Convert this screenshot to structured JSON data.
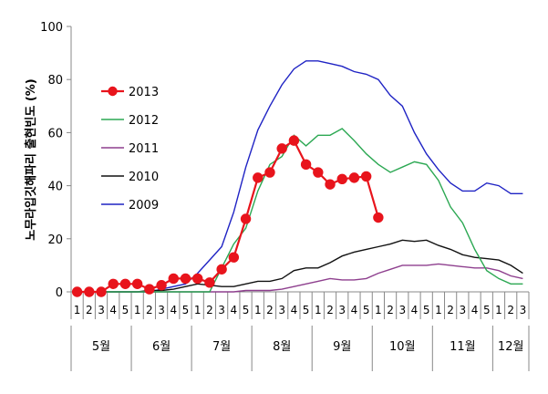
{
  "chart_data": {
    "type": "line",
    "ylabel": "노무라입깃해파리 출현빈도 (%)",
    "ylim": [
      0,
      100
    ],
    "yticks": [
      0,
      20,
      40,
      60,
      80,
      100
    ],
    "grid": false,
    "legend_position": "left-inside",
    "months": [
      {
        "label": "5월",
        "weeks": [
          "1",
          "2",
          "3",
          "4",
          "5"
        ]
      },
      {
        "label": "6월",
        "weeks": [
          "1",
          "2",
          "3",
          "4",
          "5"
        ]
      },
      {
        "label": "7월",
        "weeks": [
          "1",
          "2",
          "3",
          "4",
          "5"
        ]
      },
      {
        "label": "8월",
        "weeks": [
          "1",
          "2",
          "3",
          "4",
          "5"
        ]
      },
      {
        "label": "9월",
        "weeks": [
          "1",
          "2",
          "3",
          "4",
          "5"
        ]
      },
      {
        "label": "10월",
        "weeks": [
          "1",
          "2",
          "3",
          "4",
          "5"
        ]
      },
      {
        "label": "11월",
        "weeks": [
          "1",
          "2",
          "3",
          "4",
          "5"
        ]
      },
      {
        "label": "12월",
        "weeks": [
          "1",
          "2",
          "3"
        ]
      }
    ],
    "series": [
      {
        "name": "2013",
        "color": "#e8141c",
        "marker": "circle",
        "values": [
          0,
          0,
          0,
          3,
          3,
          3,
          1,
          2.5,
          5,
          5,
          5,
          3.5,
          8.5,
          13,
          27.5,
          43,
          45,
          54,
          57,
          48,
          45,
          40.5,
          42.5,
          43,
          43.5,
          28
        ]
      },
      {
        "name": "2012",
        "color": "#2ca853",
        "values": [
          0,
          0,
          0,
          0,
          0,
          0,
          0,
          0,
          0,
          0,
          0,
          0,
          9,
          18,
          24,
          38,
          48,
          51,
          59,
          55,
          59,
          59,
          61.5,
          57,
          52,
          48,
          45,
          47,
          49,
          48,
          42,
          32,
          26,
          16,
          8,
          5,
          3,
          3
        ]
      },
      {
        "name": "2011",
        "color": "#8e3f8e",
        "values": [
          0,
          0,
          0,
          0,
          0,
          0,
          0,
          0,
          0,
          0,
          0,
          0,
          0,
          0,
          0.5,
          0.5,
          0.5,
          1,
          2,
          3,
          4,
          5,
          4.5,
          4.5,
          5,
          7,
          8.5,
          10,
          10,
          10,
          10.5,
          10,
          9.5,
          9,
          9,
          8,
          6,
          5
        ]
      },
      {
        "name": "2010",
        "color": "#111111",
        "values": [
          0,
          0,
          0,
          0,
          0,
          0,
          0.5,
          0.5,
          1,
          2,
          3,
          2.5,
          2,
          2,
          3,
          4,
          4,
          5,
          8,
          9,
          9,
          11,
          13.5,
          15,
          16,
          17,
          18,
          19.5,
          19,
          19.5,
          17.5,
          16,
          14,
          13,
          12.5,
          12,
          10,
          7
        ]
      },
      {
        "name": "2009",
        "color": "#1f23c4",
        "values": [
          0,
          0,
          0,
          0,
          0,
          0,
          0,
          1,
          2,
          3,
          7,
          12,
          17,
          30,
          47,
          61,
          70,
          78,
          84,
          87,
          87,
          86,
          85,
          83,
          82,
          80,
          74,
          70,
          60,
          52,
          46,
          41,
          38,
          38,
          41,
          40,
          37,
          37
        ]
      }
    ]
  }
}
